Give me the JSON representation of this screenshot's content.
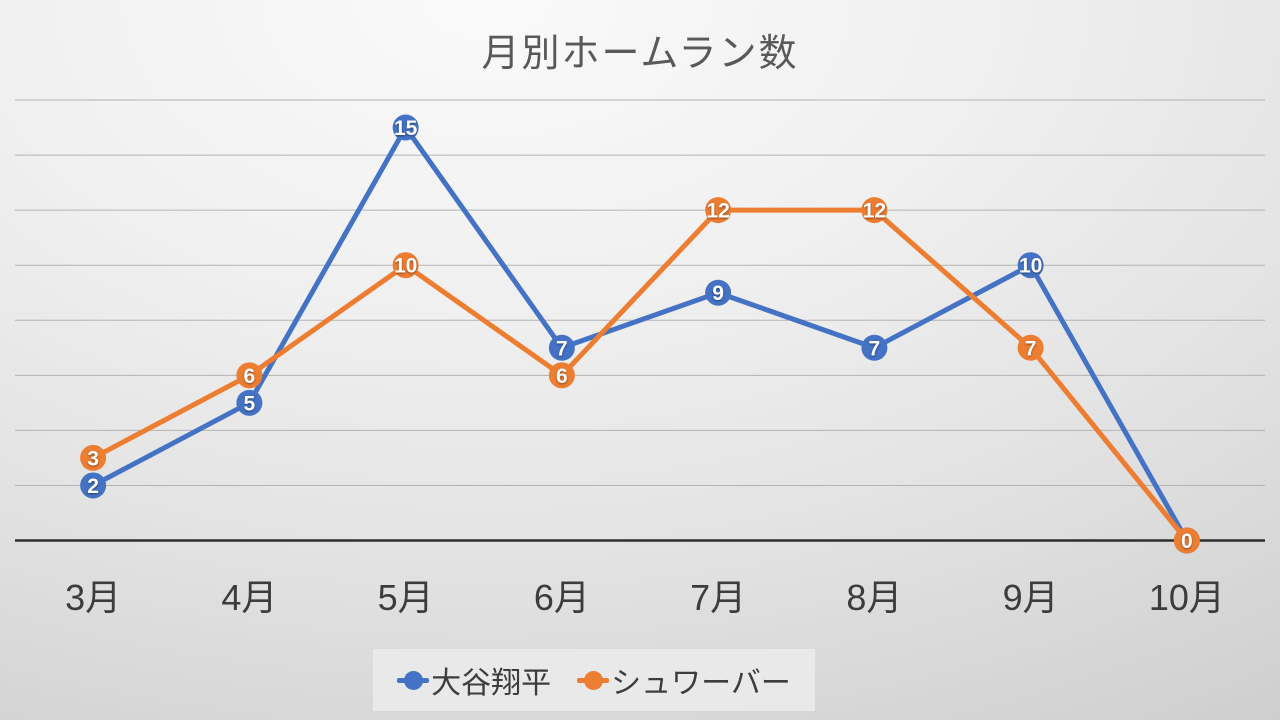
{
  "chart_data": {
    "type": "line",
    "title": "月別ホームラン数",
    "categories": [
      "3月",
      "4月",
      "5月",
      "6月",
      "7月",
      "8月",
      "9月",
      "10月"
    ],
    "series": [
      {
        "name": "大谷翔平",
        "color": "#4472C4",
        "values": [
          2,
          5,
          15,
          7,
          9,
          7,
          10,
          0
        ]
      },
      {
        "name": "シュワーバー",
        "color": "#ED7D31",
        "values": [
          3,
          6,
          10,
          6,
          12,
          12,
          7,
          0
        ]
      }
    ],
    "xlabel": "",
    "ylabel": "",
    "ylim": [
      0,
      16
    ],
    "gridline_step": 2,
    "grid": true,
    "y_axis_tick_labels_visible": false,
    "data_labels": true,
    "legend_position": "bottom"
  },
  "colors": {
    "title_text": "#595959",
    "axis_label_text": "#3c3c3c",
    "gridline": "#b3b3b3",
    "axis_line": "#2e2e2e",
    "data_label_text": "#ffffff",
    "legend_background": "#e9e9e9"
  }
}
